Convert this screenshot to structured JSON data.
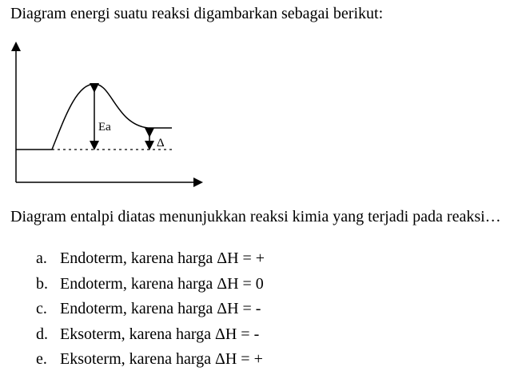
{
  "intro": "Diagram energi suatu reaksi digambarkan sebagai berikut:",
  "diagram": {
    "ea_label": "Ea",
    "delta_label": "Δ"
  },
  "question": "Diagram entalpi diatas menunjukkan reaksi kimia yang terjadi pada reaksi…",
  "options": [
    {
      "letter": "a.",
      "text": "Endoterm, karena harga ΔH = +"
    },
    {
      "letter": "b.",
      "text": "Endoterm, karena harga ΔH = 0"
    },
    {
      "letter": "c.",
      "text": "Endoterm, karena harga ΔH = -"
    },
    {
      "letter": "d.",
      "text": "Eksoterm, karena harga ΔH = -"
    },
    {
      "letter": "e.",
      "text": "Eksoterm, karena harga ΔH = +"
    }
  ]
}
